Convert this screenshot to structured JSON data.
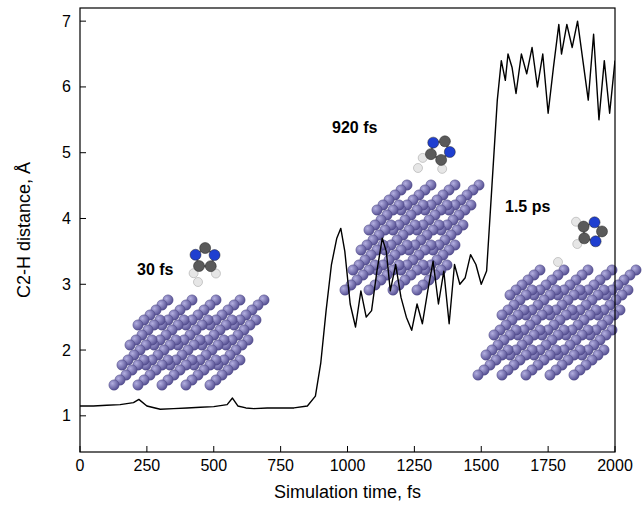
{
  "chart_data": {
    "type": "line",
    "x_label": "Simulation time, fs",
    "y_label": "C2-H distance, Å",
    "annotations": [
      "30 fs",
      "920 fs",
      "1.5 ps"
    ],
    "x": [
      0,
      50,
      100,
      150,
      200,
      220,
      250,
      300,
      350,
      400,
      450,
      500,
      550,
      570,
      590,
      620,
      650,
      700,
      750,
      800,
      850,
      880,
      900,
      920,
      940,
      960,
      975,
      990,
      1010,
      1030,
      1050,
      1070,
      1090,
      1110,
      1130,
      1145,
      1160,
      1180,
      1200,
      1220,
      1240,
      1260,
      1280,
      1300,
      1320,
      1340,
      1360,
      1380,
      1400,
      1420,
      1440,
      1460,
      1480,
      1500,
      1520,
      1540,
      1560,
      1575,
      1590,
      1600,
      1615,
      1630,
      1650,
      1670,
      1690,
      1710,
      1730,
      1750,
      1770,
      1790,
      1800,
      1820,
      1840,
      1860,
      1880,
      1900,
      1920,
      1940,
      1960,
      1980,
      2000
    ],
    "values": [
      1.15,
      1.15,
      1.16,
      1.17,
      1.2,
      1.25,
      1.15,
      1.1,
      1.11,
      1.12,
      1.13,
      1.14,
      1.17,
      1.27,
      1.15,
      1.12,
      1.11,
      1.12,
      1.12,
      1.12,
      1.15,
      1.3,
      1.8,
      2.6,
      3.3,
      3.7,
      3.85,
      3.5,
      2.7,
      2.35,
      2.9,
      2.5,
      2.6,
      3.2,
      3.7,
      3.5,
      2.9,
      3.3,
      2.8,
      2.5,
      2.3,
      2.7,
      2.4,
      2.9,
      3.35,
      2.7,
      3.2,
      2.4,
      3.3,
      3.0,
      3.1,
      3.45,
      3.3,
      3.0,
      3.2,
      4.5,
      5.8,
      6.4,
      6.1,
      6.5,
      6.3,
      5.9,
      6.5,
      6.2,
      6.6,
      6.0,
      6.5,
      5.6,
      6.3,
      6.95,
      6.5,
      6.95,
      6.6,
      7.0,
      6.4,
      5.8,
      6.8,
      5.5,
      6.4,
      5.6,
      6.4
    ],
    "color": "#000000",
    "xlim": [
      0,
      2000
    ],
    "xticks": [
      0,
      250,
      500,
      750,
      1000,
      1250,
      1500,
      1750,
      2000
    ],
    "ylim": [
      0.45,
      7.2
    ],
    "yticks": [
      1,
      2,
      3,
      4,
      5,
      6,
      7
    ],
    "grid": false
  }
}
